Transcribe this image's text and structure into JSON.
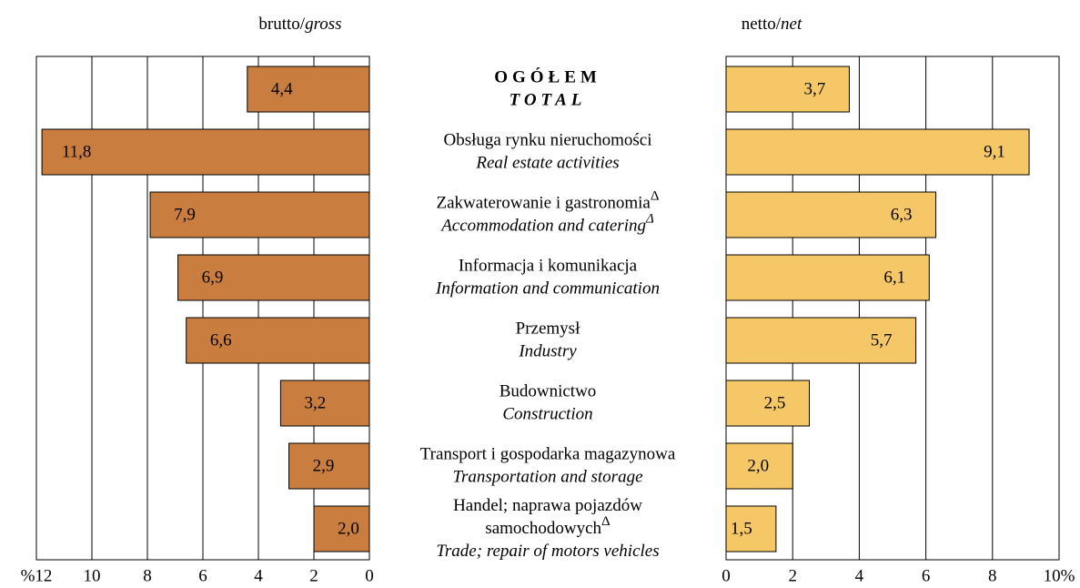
{
  "categories": [
    {
      "pl_lines": [
        "OGÓŁEM"
      ],
      "pl_marker": null,
      "en": "TOTAL",
      "en_marker": null
    },
    {
      "pl_lines": [
        "Obsługa rynku nieruchomości"
      ],
      "pl_marker": null,
      "en": "Real estate activities",
      "en_marker": null
    },
    {
      "pl_lines": [
        "Zakwaterowanie i gastronomia"
      ],
      "pl_marker": "Δ",
      "en": "Accommodation and catering",
      "en_marker": "Δ"
    },
    {
      "pl_lines": [
        "Informacja i komunikacja"
      ],
      "pl_marker": null,
      "en": "Information and communication",
      "en_marker": null
    },
    {
      "pl_lines": [
        "Przemysł"
      ],
      "pl_marker": null,
      "en": "Industry",
      "en_marker": null
    },
    {
      "pl_lines": [
        "Budownictwo"
      ],
      "pl_marker": null,
      "en": "Construction",
      "en_marker": null
    },
    {
      "pl_lines": [
        "Transport i gospodarka magazynowa"
      ],
      "pl_marker": null,
      "en": "Transportation and storage",
      "en_marker": null
    },
    {
      "pl_lines": [
        "Handel; naprawa pojazdów",
        "samochodowych"
      ],
      "pl_marker": "Δ",
      "en": "Trade; repair of motors vehicles",
      "en_marker": null
    }
  ],
  "chart_data": [
    {
      "type": "bar",
      "orientation": "horizontal",
      "direction": "reversed",
      "title": "brutto/",
      "title_en": "gross",
      "color": "#c97d3f",
      "values": [
        4.4,
        11.8,
        7.9,
        6.9,
        6.6,
        3.2,
        2.9,
        2.0
      ],
      "value_labels": [
        "4,4",
        "11,8",
        "7,9",
        "6,9",
        "6,6",
        "3,2",
        "2,9",
        "2,0"
      ],
      "xlim": [
        0,
        12
      ],
      "xticks": [
        0,
        2,
        4,
        6,
        8,
        10,
        {
          "value": 12,
          "label": "%12"
        }
      ],
      "grid": true
    },
    {
      "type": "bar",
      "orientation": "horizontal",
      "direction": "normal",
      "title": "netto/",
      "title_en": "net",
      "color": "#f5c766",
      "values": [
        3.7,
        9.1,
        6.3,
        6.1,
        5.7,
        2.5,
        2.0,
        1.5
      ],
      "value_labels": [
        "3,7",
        "9,1",
        "6,3",
        "6,1",
        "5,7",
        "2,5",
        "2,0",
        "1,5"
      ],
      "xlim": [
        0,
        10
      ],
      "xticks": [
        0,
        2,
        4,
        6,
        8,
        {
          "value": 10,
          "label": "10%"
        }
      ],
      "grid": true
    }
  ]
}
